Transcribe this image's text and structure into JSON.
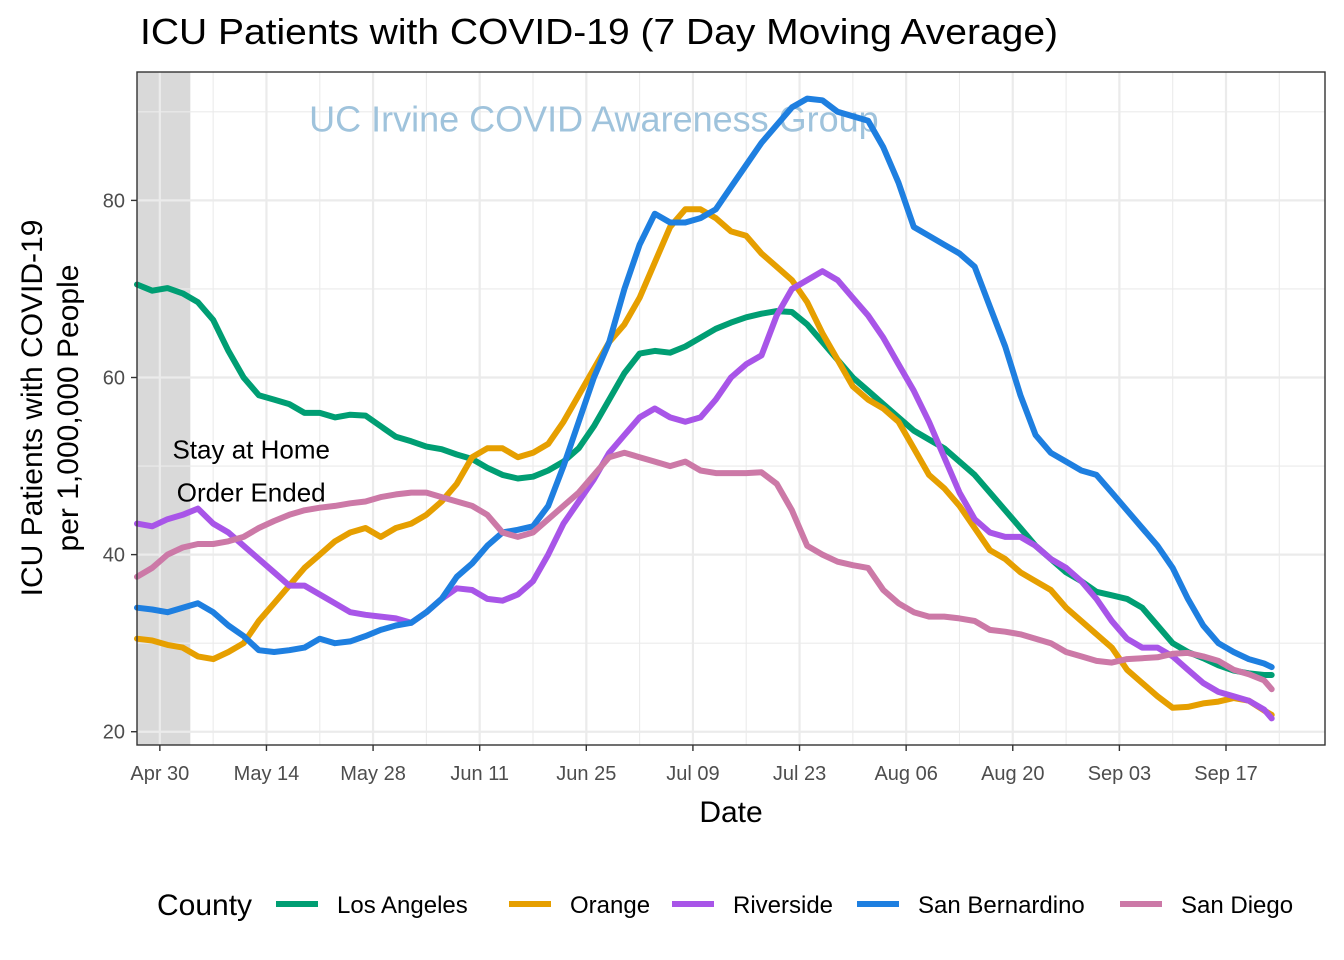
{
  "chart_data": {
    "type": "line",
    "title": "ICU Patients with COVID-19 (7 Day Moving Average)",
    "xlabel": "Date",
    "ylabel_lines": [
      "ICU Patients with COVID-19",
      "per 1,000,000 People"
    ],
    "x_tick_labels": [
      "Apr 30",
      "May 14",
      "May 28",
      "Jun 11",
      "Jun 25",
      "Jul 09",
      "Jul 23",
      "Aug 06",
      "Aug 20",
      "Sep 03",
      "Sep 17"
    ],
    "x_tick_days": [
      0,
      14,
      28,
      42,
      56,
      70,
      84,
      98,
      112,
      126,
      140
    ],
    "xlim_days": [
      -3,
      153
    ],
    "x_origin_date": "Apr 30",
    "y_ticks": [
      20,
      40,
      60,
      80
    ],
    "ylim": [
      18.5,
      94.5
    ],
    "grid": true,
    "shaded_region": {
      "x_start_days": -3,
      "x_end_days": 4,
      "color": "#d9d9d9"
    },
    "annotation_lines": [
      "Stay at Home",
      "Order Ended"
    ],
    "annotation_anchor_days": 12,
    "annotation_anchor_value": 48.5,
    "watermark_text": "UC Irvine COVID Awareness Group",
    "watermark_anchor_days": 57,
    "watermark_anchor_value": 87.8,
    "legend_title": "County",
    "legend_position": "bottom",
    "series": [
      {
        "name": "Los Angeles",
        "color": "#009e73",
        "x": [
          -3,
          -1,
          1,
          3,
          5,
          7,
          9,
          11,
          13,
          15,
          17,
          19,
          21,
          23,
          25,
          27,
          29,
          31,
          33,
          35,
          37,
          39,
          41,
          43,
          45,
          47,
          49,
          51,
          53,
          55,
          57,
          59,
          61,
          63,
          65,
          67,
          69,
          71,
          73,
          75,
          77,
          79,
          81,
          83,
          85,
          87,
          89,
          91,
          93,
          95,
          97,
          99,
          101,
          103,
          105,
          107,
          109,
          111,
          113,
          115,
          117,
          119,
          121,
          123,
          125,
          127,
          129,
          131,
          133,
          135,
          137,
          139,
          141,
          143,
          145,
          146
        ],
        "y": [
          70.5,
          69.8,
          70.1,
          69.5,
          68.5,
          66.5,
          63,
          60,
          58,
          57.5,
          57,
          56,
          56,
          55.5,
          55.8,
          55.7,
          54.5,
          53.3,
          52.8,
          52.2,
          51.9,
          51.3,
          50.8,
          49.8,
          49,
          48.6,
          48.8,
          49.5,
          50.5,
          52,
          54.5,
          57.5,
          60.5,
          62.7,
          63,
          62.8,
          63.5,
          64.5,
          65.5,
          66.2,
          66.8,
          67.2,
          67.5,
          67.4,
          66,
          64,
          62,
          60,
          58.5,
          57,
          55.5,
          54,
          53,
          52,
          50.5,
          49,
          47,
          45,
          43,
          41,
          39.5,
          38,
          37,
          35.8,
          35.4,
          35,
          34,
          32,
          30,
          29,
          28.3,
          27.5,
          26.9,
          26.6,
          26.4,
          26.4
        ]
      },
      {
        "name": "Orange",
        "color": "#e69f00",
        "x": [
          -3,
          -1,
          1,
          3,
          5,
          7,
          9,
          11,
          13,
          15,
          17,
          19,
          21,
          23,
          25,
          27,
          29,
          31,
          33,
          35,
          37,
          39,
          41,
          43,
          45,
          47,
          49,
          51,
          53,
          55,
          57,
          59,
          61,
          63,
          65,
          67,
          69,
          71,
          73,
          75,
          77,
          79,
          81,
          83,
          85,
          87,
          89,
          91,
          93,
          95,
          97,
          99,
          101,
          103,
          105,
          107,
          109,
          111,
          113,
          115,
          117,
          119,
          121,
          123,
          125,
          127,
          129,
          131,
          133,
          135,
          137,
          139,
          141,
          143,
          145,
          146
        ],
        "y": [
          30.5,
          30.3,
          29.8,
          29.5,
          28.5,
          28.2,
          29,
          30,
          32.5,
          34.5,
          36.5,
          38.5,
          40,
          41.5,
          42.5,
          43,
          42,
          43,
          43.5,
          44.5,
          46,
          48,
          51,
          52,
          52,
          51,
          51.5,
          52.5,
          55,
          58,
          61,
          64,
          66,
          69,
          73,
          77,
          79,
          79,
          78,
          76.5,
          76,
          74,
          72.5,
          71,
          68.5,
          65,
          62,
          59,
          57.5,
          56.5,
          55,
          52,
          49,
          47.5,
          45.5,
          43,
          40.5,
          39.5,
          38,
          37,
          36,
          34,
          32.5,
          31,
          29.5,
          27,
          25.5,
          24,
          22.7,
          22.8,
          23.2,
          23.4,
          23.8,
          23.5,
          22.4,
          21.9
        ]
      },
      {
        "name": "Riverside",
        "color": "#a855e8",
        "x": [
          -3,
          -1,
          1,
          3,
          5,
          7,
          9,
          11,
          13,
          15,
          17,
          19,
          21,
          23,
          25,
          27,
          29,
          31,
          33,
          35,
          37,
          39,
          41,
          43,
          45,
          47,
          49,
          51,
          53,
          55,
          57,
          59,
          61,
          63,
          65,
          67,
          69,
          71,
          73,
          75,
          77,
          79,
          81,
          83,
          85,
          87,
          89,
          91,
          93,
          95,
          97,
          99,
          101,
          103,
          105,
          107,
          109,
          111,
          113,
          115,
          117,
          119,
          121,
          123,
          125,
          127,
          129,
          131,
          133,
          135,
          137,
          139,
          141,
          143,
          145,
          146
        ],
        "y": [
          43.5,
          43.2,
          44,
          44.5,
          45.2,
          43.5,
          42.5,
          41,
          39.5,
          38,
          36.5,
          36.5,
          35.5,
          34.5,
          33.5,
          33.2,
          33,
          32.8,
          32.3,
          33.5,
          35,
          36.2,
          36,
          35,
          34.8,
          35.5,
          37,
          40,
          43.5,
          46,
          48.5,
          51.5,
          53.5,
          55.5,
          56.5,
          55.5,
          55,
          55.5,
          57.5,
          60,
          61.5,
          62.5,
          67,
          70,
          71,
          72,
          71,
          69,
          67,
          64.5,
          61.5,
          58.5,
          55,
          51,
          47,
          44,
          42.5,
          42,
          42,
          41,
          39.5,
          38.5,
          37,
          35,
          32.5,
          30.5,
          29.5,
          29.5,
          28.5,
          27,
          25.5,
          24.5,
          24,
          23.5,
          22.5,
          21.5
        ]
      },
      {
        "name": "San Bernardino",
        "color": "#1e7fe0",
        "x": [
          -3,
          -1,
          1,
          3,
          5,
          7,
          9,
          11,
          13,
          15,
          17,
          19,
          21,
          23,
          25,
          27,
          29,
          31,
          33,
          35,
          37,
          39,
          41,
          43,
          45,
          47,
          49,
          51,
          53,
          55,
          57,
          59,
          61,
          63,
          65,
          67,
          69,
          71,
          73,
          75,
          77,
          79,
          81,
          83,
          85,
          87,
          89,
          91,
          93,
          95,
          97,
          99,
          101,
          103,
          105,
          107,
          109,
          111,
          113,
          115,
          117,
          119,
          121,
          123,
          125,
          127,
          129,
          131,
          133,
          135,
          137,
          139,
          141,
          143,
          145,
          146
        ],
        "y": [
          34,
          33.8,
          33.5,
          34,
          34.5,
          33.5,
          32,
          30.8,
          29.2,
          29,
          29.2,
          29.5,
          30.5,
          30,
          30.2,
          30.8,
          31.5,
          32,
          32.3,
          33.5,
          35,
          37.5,
          39,
          41,
          42.5,
          42.8,
          43.2,
          45.5,
          50,
          55,
          60,
          64,
          70,
          75,
          78.5,
          77.5,
          77.5,
          78,
          79,
          81.5,
          84,
          86.5,
          88.5,
          90.5,
          91.5,
          91.3,
          90,
          89.5,
          89,
          86,
          82,
          77,
          76,
          75,
          74,
          72.5,
          68,
          63.5,
          58,
          53.5,
          51.5,
          50.5,
          49.5,
          49,
          47,
          45,
          43,
          41,
          38.5,
          35,
          32,
          30,
          29,
          28.2,
          27.7,
          27.3
        ]
      },
      {
        "name": "San Diego",
        "color": "#cc79a7",
        "x": [
          -3,
          -1,
          1,
          3,
          5,
          7,
          9,
          11,
          13,
          15,
          17,
          19,
          21,
          23,
          25,
          27,
          29,
          31,
          33,
          35,
          37,
          39,
          41,
          43,
          45,
          47,
          49,
          51,
          53,
          55,
          57,
          59,
          61,
          63,
          65,
          67,
          69,
          71,
          73,
          75,
          77,
          79,
          81,
          83,
          85,
          87,
          89,
          91,
          93,
          95,
          97,
          99,
          101,
          103,
          105,
          107,
          109,
          111,
          113,
          115,
          117,
          119,
          121,
          123,
          125,
          127,
          129,
          131,
          133,
          135,
          137,
          139,
          141,
          143,
          145,
          146
        ],
        "y": [
          37.5,
          38.5,
          40,
          40.8,
          41.2,
          41.2,
          41.5,
          42,
          43,
          43.8,
          44.5,
          45,
          45.3,
          45.5,
          45.8,
          46,
          46.5,
          46.8,
          47,
          47,
          46.5,
          46,
          45.5,
          44.5,
          42.5,
          42,
          42.5,
          44,
          45.5,
          47,
          49,
          51,
          51.5,
          51,
          50.5,
          50,
          50.5,
          49.5,
          49.2,
          49.2,
          49.2,
          49.3,
          48,
          45,
          41,
          40,
          39.2,
          38.8,
          38.5,
          36,
          34.5,
          33.5,
          33,
          33,
          32.8,
          32.5,
          31.5,
          31.3,
          31,
          30.5,
          30,
          29,
          28.5,
          28,
          27.8,
          28.2,
          28.3,
          28.4,
          28.8,
          28.9,
          28.5,
          28,
          27,
          26.5,
          25.8,
          24.8
        ]
      }
    ]
  }
}
